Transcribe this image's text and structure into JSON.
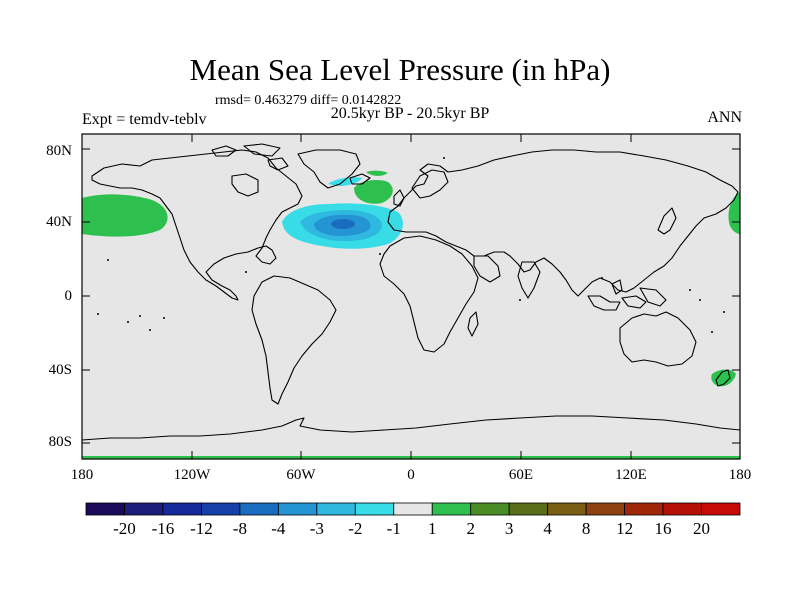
{
  "header": {
    "title": "Mean Sea Level Pressure (in hPa)",
    "stats": "rmsd= 0.463279 diff= 0.0142822",
    "period": "20.5kyr BP - 20.5kyr BP",
    "experiment": "Expt = temdv-teblv",
    "season": "ANN"
  },
  "axes": {
    "lat_labels": [
      "80N",
      "40N",
      "0",
      "40S",
      "80S"
    ],
    "lon_labels": [
      "180",
      "120W",
      "60W",
      "0",
      "60E",
      "120E",
      "180"
    ]
  },
  "colorbar": {
    "labels": [
      "-20",
      "-16",
      "-12",
      "-8",
      "-4",
      "-3",
      "-2",
      "-1",
      "1",
      "2",
      "3",
      "4",
      "8",
      "12",
      "16",
      "20"
    ],
    "colors": [
      "#1b0a5a",
      "#1c1e7a",
      "#142a9a",
      "#1440a8",
      "#1a6cc0",
      "#2494d2",
      "#2fb8e0",
      "#38dce6",
      "#e6e6e6",
      "#2ec04e",
      "#4a8c26",
      "#5a6e1a",
      "#7a5e14",
      "#8e4210",
      "#a0260a",
      "#b41008",
      "#c80a06"
    ]
  },
  "map": {
    "background_color": "#e6e6e6",
    "features": [
      {
        "name": "north-pacific-positive-anomaly",
        "value_range": "1 to 2"
      },
      {
        "name": "north-atlantic-negative-anomaly",
        "value_range": "-1 to -4"
      },
      {
        "name": "norwegian-sea-positive-anomaly",
        "value_range": "1 to 2"
      },
      {
        "name": "new-zealand-positive-anomaly",
        "value_range": "1 to 2"
      }
    ]
  }
}
